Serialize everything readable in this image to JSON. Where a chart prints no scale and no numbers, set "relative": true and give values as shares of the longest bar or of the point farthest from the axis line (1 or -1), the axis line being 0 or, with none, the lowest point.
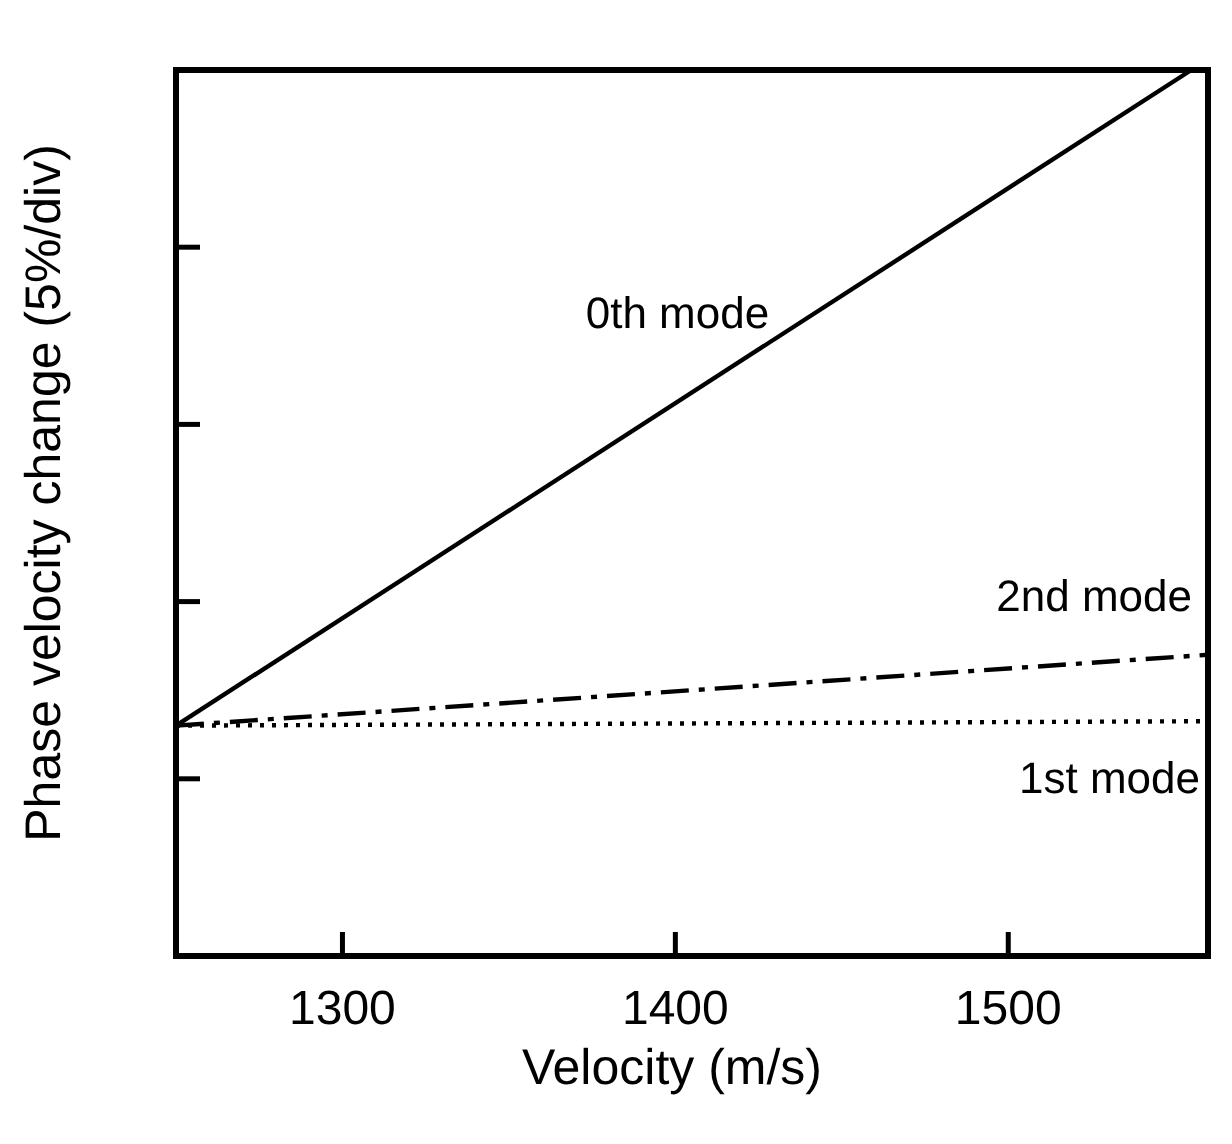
{
  "chart_data": {
    "type": "line",
    "relative": true,
    "xlabel": "Velocity (m/s)",
    "ylabel": "Phase velocity change (5%/div)",
    "xlim": [
      1250,
      1560
    ],
    "xticks": [
      1300,
      1400,
      1500
    ],
    "grid": false,
    "series": [
      {
        "name": "0th mode",
        "color": "#000000",
        "line_style": "solid",
        "x": [
          1250,
          1555
        ],
        "values": [
          0.26,
          1
        ]
      },
      {
        "name": "2nd mode",
        "color": "#000000",
        "line_style": "dashed",
        "x": [
          1250,
          1560
        ],
        "values": [
          0.26,
          0.34
        ]
      },
      {
        "name": "1st mode",
        "color": "#000000",
        "line_style": "dotted",
        "x": [
          1250,
          1560
        ],
        "values": [
          0.26,
          0.265
        ]
      }
    ]
  }
}
